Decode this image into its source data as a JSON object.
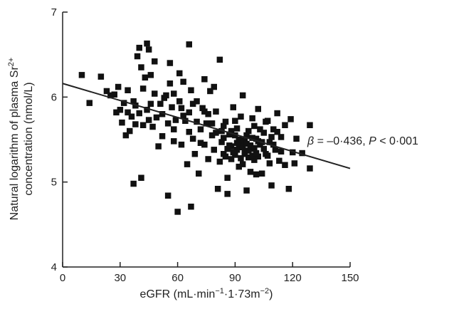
{
  "chart_data": {
    "type": "scatter",
    "xlabel_parts": [
      "eGFR (mL·min",
      "−1",
      "·1·73m",
      "−2",
      ")"
    ],
    "ylabel_line1_parts": [
      "Natural logarithm of plasma Sr",
      "2+"
    ],
    "ylabel_line2": "concentration (nmol/L)",
    "xlim": [
      0,
      150
    ],
    "ylim": [
      4,
      7
    ],
    "xticks": [
      "0",
      "30",
      "60",
      "90",
      "120",
      "150"
    ],
    "yticks": [
      "4",
      "5",
      "6",
      "7"
    ],
    "regression": {
      "x": [
        0,
        150
      ],
      "y": [
        6.16,
        5.16
      ]
    },
    "annotation": {
      "beta_symbol": "β",
      "beta_text": " = –0·436, ",
      "p_symbol": "P",
      "p_text": " < 0·001"
    },
    "points": [
      [
        10,
        6.26
      ],
      [
        14,
        5.93
      ],
      [
        20,
        6.24
      ],
      [
        23,
        6.07
      ],
      [
        25,
        6.02
      ],
      [
        27,
        6.03
      ],
      [
        28,
        5.82
      ],
      [
        29,
        6.12
      ],
      [
        30,
        5.85
      ],
      [
        32,
        5.93
      ],
      [
        33,
        5.55
      ],
      [
        34,
        6.08
      ],
      [
        36,
        5.77
      ],
      [
        37,
        5.95
      ],
      [
        38,
        5.68
      ],
      [
        39,
        6.48
      ],
      [
        40,
        5.81
      ],
      [
        41,
        6.35
      ],
      [
        42,
        6.1
      ],
      [
        44,
        6.63
      ],
      [
        45,
        5.73
      ],
      [
        46,
        6.26
      ],
      [
        47,
        5.65
      ],
      [
        48,
        6.04
      ],
      [
        50,
        5.42
      ],
      [
        51,
        5.92
      ],
      [
        52,
        5.54
      ],
      [
        54,
        6.02
      ],
      [
        55,
        5.69
      ],
      [
        56,
        6.16
      ],
      [
        57,
        5.88
      ],
      [
        58,
        5.48
      ],
      [
        59,
        5.73
      ],
      [
        60,
        4.65
      ],
      [
        61,
        5.95
      ],
      [
        62,
        5.44
      ],
      [
        63,
        6.18
      ],
      [
        64,
        5.72
      ],
      [
        65,
        5.21
      ],
      [
        66,
        5.82
      ],
      [
        67,
        6.08
      ],
      [
        68,
        5.51
      ],
      [
        69,
        5.33
      ],
      [
        70,
        5.71
      ],
      [
        71,
        5.1
      ],
      [
        72,
        5.62
      ],
      [
        73,
        5.87
      ],
      [
        74,
        5.44
      ],
      [
        75,
        5.69
      ],
      [
        76,
        5.27
      ],
      [
        77,
        6.07
      ],
      [
        78,
        5.55
      ],
      [
        79,
        5.38
      ],
      [
        80,
        5.83
      ],
      [
        81,
        4.92
      ],
      [
        82,
        6.44
      ],
      [
        83,
        5.47
      ],
      [
        84,
        5.33
      ],
      [
        85,
        5.71
      ],
      [
        86,
        5.05
      ],
      [
        87,
        5.56
      ],
      [
        88,
        5.42
      ],
      [
        89,
        5.88
      ],
      [
        90,
        5.32
      ],
      [
        91,
        5.63
      ],
      [
        92,
        5.18
      ],
      [
        93,
        5.49
      ],
      [
        94,
        6.02
      ],
      [
        95,
        5.35
      ],
      [
        96,
        4.9
      ],
      [
        97,
        5.6
      ],
      [
        98,
        5.39
      ],
      [
        99,
        5.75
      ],
      [
        100,
        5.26
      ],
      [
        101,
        5.51
      ],
      [
        102,
        5.86
      ],
      [
        103,
        5.44
      ],
      [
        104,
        5.1
      ],
      [
        105,
        5.58
      ],
      [
        106,
        5.33
      ],
      [
        107,
        5.72
      ],
      [
        108,
        5.47
      ],
      [
        109,
        4.96
      ],
      [
        110,
        5.62
      ],
      [
        111,
        5.38
      ],
      [
        112,
        5.81
      ],
      [
        113,
        5.25
      ],
      [
        114,
        5.53
      ],
      [
        116,
        5.67
      ],
      [
        118,
        4.92
      ],
      [
        120,
        5.35
      ],
      [
        122,
        5.51
      ],
      [
        125,
        5.34
      ],
      [
        129,
        5.67
      ],
      [
        129,
        5.16
      ],
      [
        37,
        4.98
      ],
      [
        41,
        5.05
      ],
      [
        55,
        4.84
      ],
      [
        67,
        4.71
      ],
      [
        86,
        4.86
      ],
      [
        35,
        5.6
      ],
      [
        44,
        5.85
      ],
      [
        49,
        5.76
      ],
      [
        53,
        5.99
      ],
      [
        58,
        5.62
      ],
      [
        63,
        5.78
      ],
      [
        68,
        5.92
      ],
      [
        72,
        5.46
      ],
      [
        76,
        5.8
      ],
      [
        80,
        5.58
      ],
      [
        84,
        5.66
      ],
      [
        88,
        5.27
      ],
      [
        90,
        5.72
      ],
      [
        92,
        5.44
      ],
      [
        94,
        5.21
      ],
      [
        96,
        5.55
      ],
      [
        98,
        5.12
      ],
      [
        100,
        5.66
      ],
      [
        102,
        5.3
      ],
      [
        104,
        5.47
      ],
      [
        106,
        5.71
      ],
      [
        108,
        5.22
      ],
      [
        110,
        5.44
      ],
      [
        112,
        5.59
      ],
      [
        114,
        5.36
      ],
      [
        116,
        5.2
      ],
      [
        119,
        5.74
      ],
      [
        121,
        5.22
      ],
      [
        88,
        5.6
      ],
      [
        91,
        5.38
      ],
      [
        93,
        5.77
      ],
      [
        95,
        5.48
      ],
      [
        97,
        5.29
      ],
      [
        99,
        5.52
      ],
      [
        101,
        5.09
      ],
      [
        103,
        5.62
      ],
      [
        86,
        5.39
      ],
      [
        84,
        5.52
      ],
      [
        82,
        5.24
      ],
      [
        78,
        5.69
      ],
      [
        74,
        5.83
      ],
      [
        70,
        5.95
      ],
      [
        66,
        5.59
      ],
      [
        62,
        5.87
      ],
      [
        58,
        6.04
      ],
      [
        52,
        5.8
      ],
      [
        46,
        5.92
      ],
      [
        42,
        5.67
      ],
      [
        38,
        5.9
      ],
      [
        34,
        5.82
      ],
      [
        31,
        5.7
      ],
      [
        43,
        6.23
      ],
      [
        48,
        6.42
      ],
      [
        56,
        6.4
      ],
      [
        61,
        6.28
      ],
      [
        74,
        6.21
      ],
      [
        79,
        6.12
      ],
      [
        66,
        6.62
      ],
      [
        45,
        6.56
      ],
      [
        40,
        6.58
      ],
      [
        94,
        5.41
      ],
      [
        95,
        5.33
      ],
      [
        96,
        5.45
      ],
      [
        97,
        5.37
      ],
      [
        93,
        5.28
      ],
      [
        92,
        5.5
      ],
      [
        98,
        5.43
      ],
      [
        99,
        5.31
      ],
      [
        91,
        5.46
      ],
      [
        90,
        5.55
      ],
      [
        89,
        5.35
      ],
      [
        100,
        5.4
      ],
      [
        101,
        5.34
      ],
      [
        102,
        5.48
      ],
      [
        87,
        5.43
      ],
      [
        85,
        5.3
      ],
      [
        83,
        5.6
      ],
      [
        105,
        5.39
      ],
      [
        107,
        5.31
      ],
      [
        109,
        5.53
      ]
    ]
  }
}
